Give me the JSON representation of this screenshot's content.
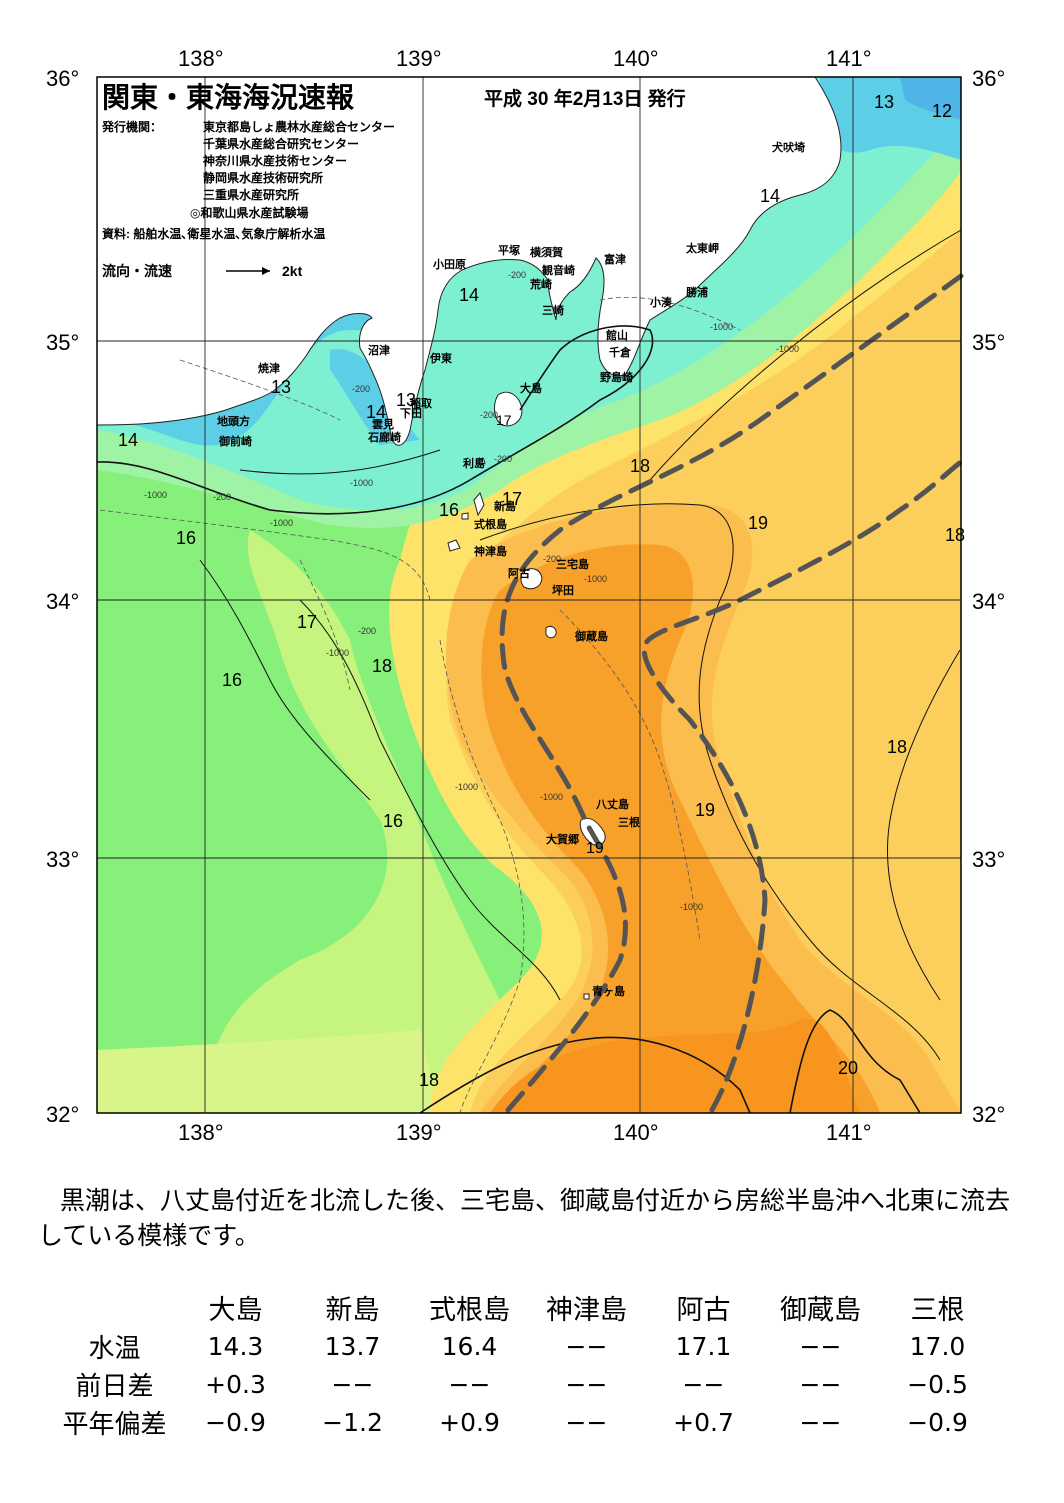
{
  "map": {
    "title": "関東・東海海況速報",
    "issue_date": "平成 30 年2月13日 発行",
    "issuers_label": "発行機関：",
    "issuers": [
      "東京都島しょ農林水産総合センター",
      "千葉県水産総合研究センター",
      "神奈川県水産技術センター",
      "静岡県水産技術研究所",
      "三重県水産研究所",
      "◎和歌山県水産試験場"
    ],
    "source": "資料: 船舶水温､衛星水温､気象庁解析水温",
    "current_legend": "流向・流速",
    "current_speed": "2kt",
    "lon_labels": [
      "138°",
      "139°",
      "140°",
      "141°"
    ],
    "lat_labels": [
      "36°",
      "35°",
      "34°",
      "33°",
      "32°"
    ],
    "place_labels": [
      "犬吠埼",
      "太東岬",
      "勝浦",
      "小湊",
      "富津",
      "横須賀",
      "観音崎",
      "平塚",
      "荒崎",
      "三崎",
      "館山",
      "千倉",
      "野島崎",
      "小田原",
      "沼津",
      "伊東",
      "大島",
      "焼津",
      "稲取",
      "下田",
      "地頭方",
      "御前崎",
      "雲見",
      "石廊崎",
      "利島",
      "新島",
      "式根島",
      "神津島",
      "三宅島",
      "阿古",
      "坪田",
      "御蔵島",
      "八丈島",
      "三根",
      "大賀郷",
      "青ヶ島"
    ],
    "temperature_labels": [
      "12",
      "13",
      "13",
      "13",
      "14",
      "14",
      "14",
      "14",
      "16",
      "16",
      "16",
      "16",
      "17",
      "17",
      "17",
      "18",
      "18",
      "18",
      "18",
      "18",
      "19",
      "19",
      "19",
      "20"
    ],
    "depth_labels": [
      "-200",
      "-200",
      "-200",
      "-200",
      "-200",
      "-200",
      "-200",
      "-1000",
      "-1000",
      "-1000",
      "-1000",
      "-1000",
      "-1000",
      "-1000",
      "-1000",
      "-1000",
      "-1000"
    ],
    "colors": {
      "t12": "#4fb4e6",
      "t13": "#5ccfe6",
      "t14": "#7ef0d2",
      "t16": "#86f07a",
      "t17": "#d8f58a",
      "t18": "#fde36a",
      "t19": "#fbbd4e",
      "t20": "#f7951e",
      "kuroshio_axis": "#545454",
      "land": "#ffffff"
    }
  },
  "description": {
    "text": "黒潮は、八丈島付近を北流した後、三宅島、御蔵島付近から房総半島沖へ北東に流去している模様です。"
  },
  "table": {
    "columns": [
      "大島",
      "新島",
      "式根島",
      "神津島",
      "阿古",
      "御蔵島",
      "三根"
    ],
    "rows": [
      {
        "label": "水温",
        "values": [
          "14.3",
          "13.7",
          "16.4",
          "−−",
          "17.1",
          "−−",
          "17.0"
        ]
      },
      {
        "label": "前日差",
        "values": [
          "+0.3",
          "−−",
          "−−",
          "−−",
          "−−",
          "−−",
          "−0.5"
        ]
      },
      {
        "label": "平年偏差",
        "values": [
          "−0.9",
          "−1.2",
          "+0.9",
          "−−",
          "+0.7",
          "−−",
          "−0.9"
        ]
      }
    ]
  }
}
